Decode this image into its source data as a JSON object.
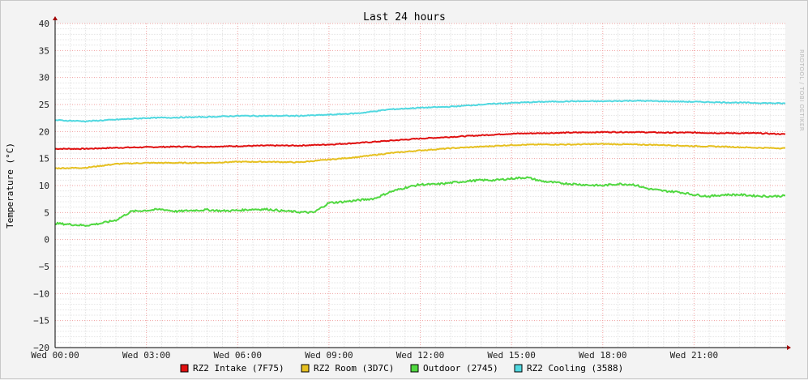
{
  "chart_data": {
    "type": "line",
    "title": "Last 24 hours",
    "ylabel": "Temperature (°C)",
    "xlabel": "",
    "ylim": [
      -20,
      40
    ],
    "yticks": [
      -20,
      -15,
      -10,
      -5,
      0,
      5,
      10,
      15,
      20,
      25,
      30,
      35,
      40
    ],
    "xlim": [
      0,
      24
    ],
    "xticks": [
      {
        "x": 0,
        "label": "Wed 00:00"
      },
      {
        "x": 3,
        "label": "Wed 03:00"
      },
      {
        "x": 6,
        "label": "Wed 06:00"
      },
      {
        "x": 9,
        "label": "Wed 09:00"
      },
      {
        "x": 12,
        "label": "Wed 12:00"
      },
      {
        "x": 15,
        "label": "Wed 15:00"
      },
      {
        "x": 18,
        "label": "Wed 18:00"
      },
      {
        "x": 21,
        "label": "Wed 21:00"
      }
    ],
    "grid": true,
    "legend_position": "bottom",
    "watermark": "RRDTOOL / TOBI OETIKER",
    "series": [
      {
        "name": "RZ2 Intake (7F75)",
        "color": "#e01010",
        "x": [
          0,
          1,
          2,
          3,
          4,
          5,
          6,
          7,
          8,
          9,
          10,
          11,
          12,
          13,
          14,
          15,
          16,
          17,
          18,
          19,
          20,
          21,
          22,
          23,
          24
        ],
        "values": [
          16.8,
          16.8,
          17.0,
          17.1,
          17.2,
          17.2,
          17.3,
          17.4,
          17.4,
          17.6,
          17.9,
          18.3,
          18.7,
          19.0,
          19.3,
          19.6,
          19.7,
          19.8,
          19.9,
          19.9,
          19.8,
          19.8,
          19.7,
          19.7,
          19.5
        ]
      },
      {
        "name": "RZ2 Room (3D7C)",
        "color": "#e6c020",
        "x": [
          0,
          1,
          2,
          3,
          4,
          5,
          6,
          7,
          8,
          9,
          10,
          11,
          12,
          13,
          14,
          15,
          16,
          17,
          18,
          19,
          20,
          21,
          22,
          23,
          24
        ],
        "values": [
          13.2,
          13.3,
          14.0,
          14.2,
          14.2,
          14.2,
          14.4,
          14.4,
          14.3,
          14.8,
          15.3,
          16.0,
          16.5,
          16.9,
          17.2,
          17.5,
          17.6,
          17.6,
          17.7,
          17.6,
          17.5,
          17.3,
          17.2,
          17.0,
          16.9
        ]
      },
      {
        "name": "Outdoor (2745)",
        "color": "#50d840",
        "x": [
          0,
          0.5,
          1,
          1.5,
          2,
          2.5,
          3,
          3.5,
          4,
          4.5,
          5,
          5.5,
          6,
          6.5,
          7,
          7.5,
          8,
          8.5,
          9,
          9.5,
          10,
          10.5,
          11,
          11.5,
          12,
          12.5,
          13,
          13.5,
          14,
          14.5,
          15,
          15.5,
          16,
          16.5,
          17,
          17.5,
          18,
          18.5,
          19,
          19.5,
          20,
          20.5,
          21,
          21.5,
          22,
          22.5,
          23,
          23.5,
          24
        ],
        "values": [
          3.0,
          2.8,
          2.6,
          3.0,
          3.6,
          5.2,
          5.4,
          5.6,
          5.2,
          5.4,
          5.5,
          5.3,
          5.4,
          5.6,
          5.6,
          5.3,
          5.1,
          5.0,
          6.8,
          7.0,
          7.3,
          7.6,
          8.8,
          9.6,
          10.2,
          10.2,
          10.5,
          10.8,
          11.0,
          11.0,
          11.3,
          11.5,
          10.8,
          10.5,
          10.3,
          10.1,
          10.0,
          10.3,
          10.2,
          9.4,
          9.0,
          8.8,
          8.3,
          8.0,
          8.3,
          8.3,
          8.1,
          8.0,
          8.1
        ]
      },
      {
        "name": "RZ2 Cooling (3588)",
        "color": "#50d8e0",
        "x": [
          0,
          1,
          2,
          3,
          4,
          5,
          6,
          7,
          8,
          9,
          10,
          11,
          12,
          13,
          14,
          15,
          16,
          17,
          18,
          19,
          20,
          21,
          22,
          23,
          24
        ],
        "values": [
          22.1,
          21.9,
          22.2,
          22.5,
          22.6,
          22.7,
          22.9,
          22.9,
          22.9,
          23.1,
          23.4,
          24.1,
          24.4,
          24.6,
          25.0,
          25.3,
          25.5,
          25.6,
          25.6,
          25.7,
          25.6,
          25.5,
          25.4,
          25.3,
          25.2
        ]
      }
    ]
  }
}
